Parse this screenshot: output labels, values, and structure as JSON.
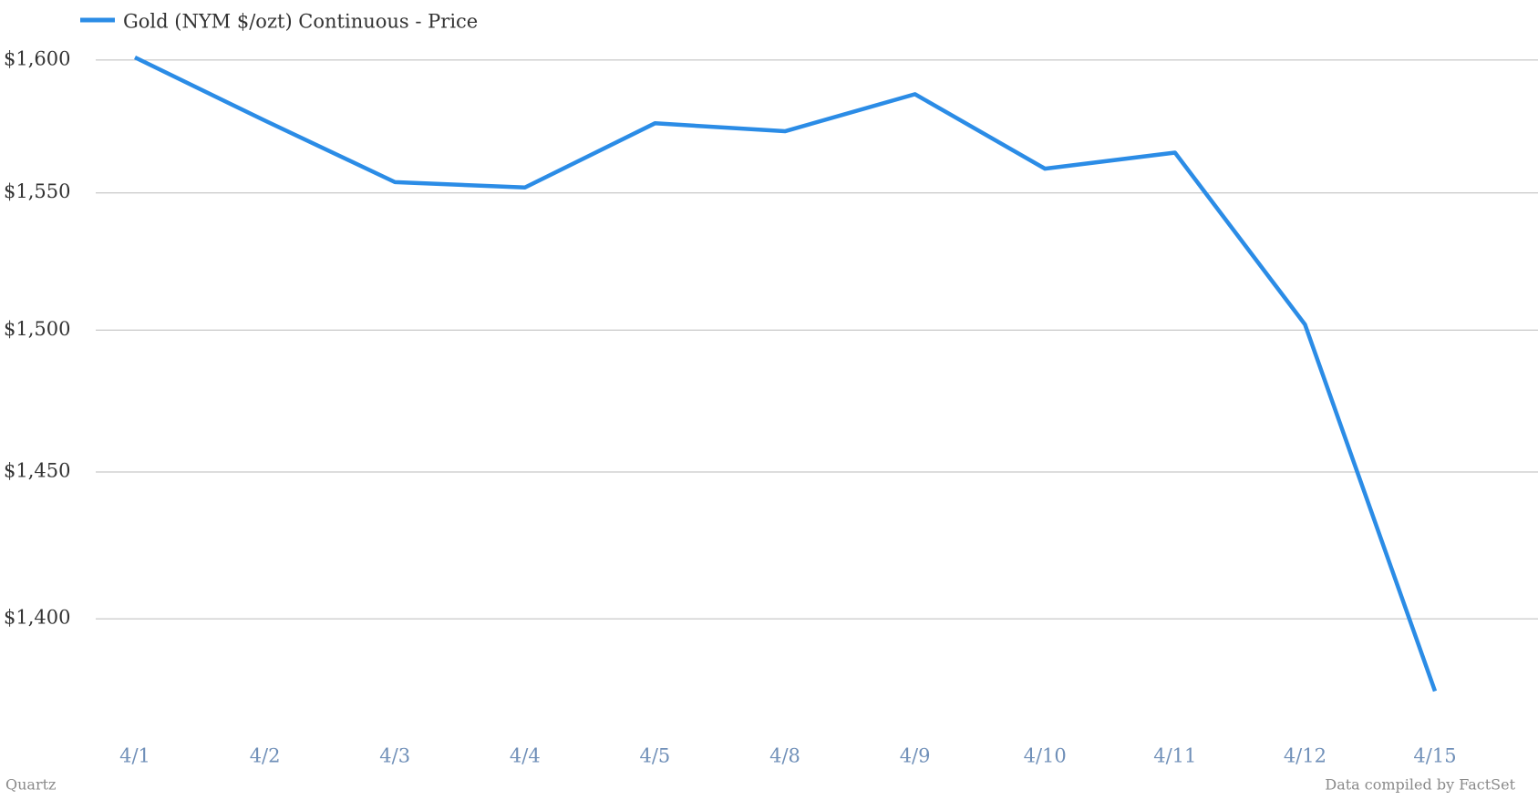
{
  "chart_data": {
    "type": "line",
    "categories": [
      "4/1",
      "4/2",
      "4/3",
      "4/4",
      "4/5",
      "4/8",
      "4/9",
      "4/10",
      "4/11",
      "4/12",
      "4/15"
    ],
    "series": [
      {
        "name": "Gold (NYM $/ozt) Continuous - Price",
        "color": "#2b8ce6",
        "values": [
          1601,
          1577,
          1554,
          1552,
          1576,
          1573,
          1587,
          1559,
          1565,
          1502,
          1376
        ]
      }
    ],
    "ylim": [
      1366,
      1608
    ],
    "yticks": [
      {
        "value": 1400,
        "label": "$1,400"
      },
      {
        "value": 1450,
        "label": "$1,450"
      },
      {
        "value": 1500,
        "label": "$1,500"
      },
      {
        "value": 1550,
        "label": "$1,550"
      },
      {
        "value": 1600,
        "label": "$1,600"
      }
    ],
    "log_scale": true,
    "grid": true,
    "legend": "top-left",
    "credit": "Quartz",
    "source_note": "Data compiled by FactSet"
  }
}
